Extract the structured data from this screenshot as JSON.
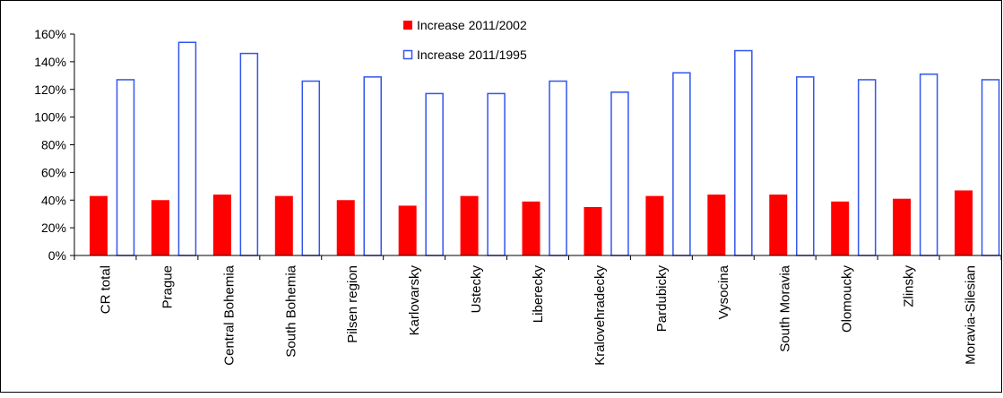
{
  "chart_data": {
    "type": "bar",
    "title": "",
    "xlabel": "",
    "ylabel": "",
    "ylim": [
      0,
      160
    ],
    "y_ticks": [
      "0%",
      "20%",
      "40%",
      "60%",
      "80%",
      "100%",
      "120%",
      "140%",
      "160%"
    ],
    "grid": false,
    "legend_position": "top-center",
    "categories": [
      "CR total",
      "Prague",
      "Central Bohemia",
      "South Bohemia",
      "Pilsen region",
      "Karlovarsky",
      "Ustecky",
      "Liberecky",
      "Kralovehradecky",
      "Pardubicky",
      "Vysocina",
      "South Moravia",
      "Olomoucky",
      "Zlinsky",
      "Moravia-Silesian"
    ],
    "series": [
      {
        "name": "Increase 2011/2002",
        "style": "filled",
        "color": "#ff0000",
        "values": [
          43,
          40,
          44,
          43,
          40,
          36,
          43,
          39,
          35,
          43,
          44,
          44,
          39,
          41,
          47
        ]
      },
      {
        "name": "Increase 2011/1995",
        "style": "outline",
        "color": "#3355ee",
        "values": [
          127,
          154,
          146,
          126,
          129,
          117,
          117,
          126,
          118,
          132,
          148,
          129,
          127,
          131,
          127
        ]
      }
    ]
  }
}
